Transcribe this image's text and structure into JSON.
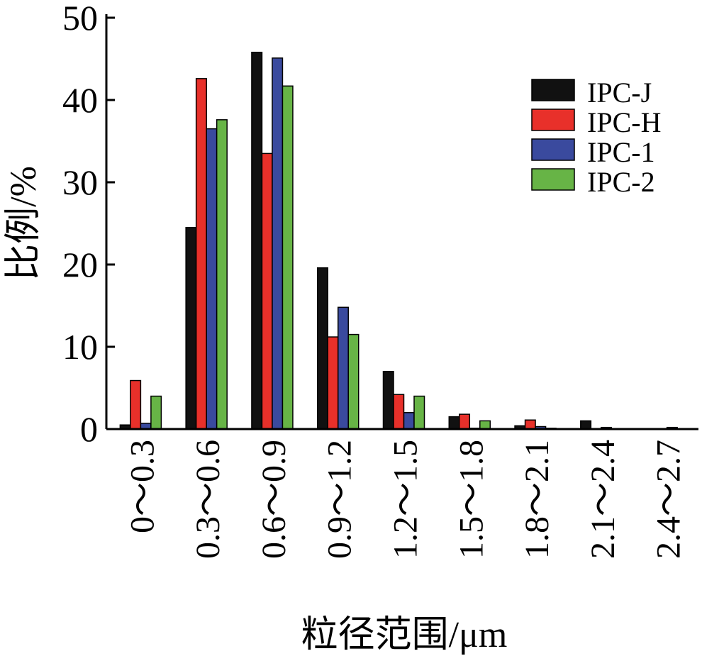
{
  "chart_data": {
    "type": "bar",
    "title": "",
    "xlabel": "粒径范围/μm",
    "ylabel": "比例/%",
    "ylim": [
      0,
      50
    ],
    "yticks": [
      "0",
      "10",
      "20",
      "30",
      "40",
      "50"
    ],
    "categories": [
      "0～0.3",
      "0.3～0.6",
      "0.6～0.9",
      "0.9～1.2",
      "1.2～1.5",
      "1.5～1.8",
      "1.8～2.1",
      "2.1～2.4",
      "2.4～2.7"
    ],
    "series": [
      {
        "name": "IPC-J",
        "color": "#111111",
        "values": [
          0.5,
          24.5,
          45.8,
          19.6,
          7.0,
          1.5,
          0.4,
          1.0,
          0.0
        ]
      },
      {
        "name": "IPC-H",
        "color": "#e8302a",
        "values": [
          5.9,
          42.6,
          33.5,
          11.2,
          4.2,
          1.8,
          1.1,
          0.0,
          0.0
        ]
      },
      {
        "name": "IPC-1",
        "color": "#3a4a9e",
        "values": [
          0.7,
          36.5,
          45.1,
          14.8,
          2.0,
          0.1,
          0.3,
          0.2,
          0.2
        ]
      },
      {
        "name": "IPC-2",
        "color": "#67b446",
        "values": [
          4.0,
          37.6,
          41.7,
          11.5,
          4.0,
          1.0,
          0.1,
          0.0,
          0.0
        ]
      }
    ],
    "legend_position": "top-right",
    "grid": false
  }
}
